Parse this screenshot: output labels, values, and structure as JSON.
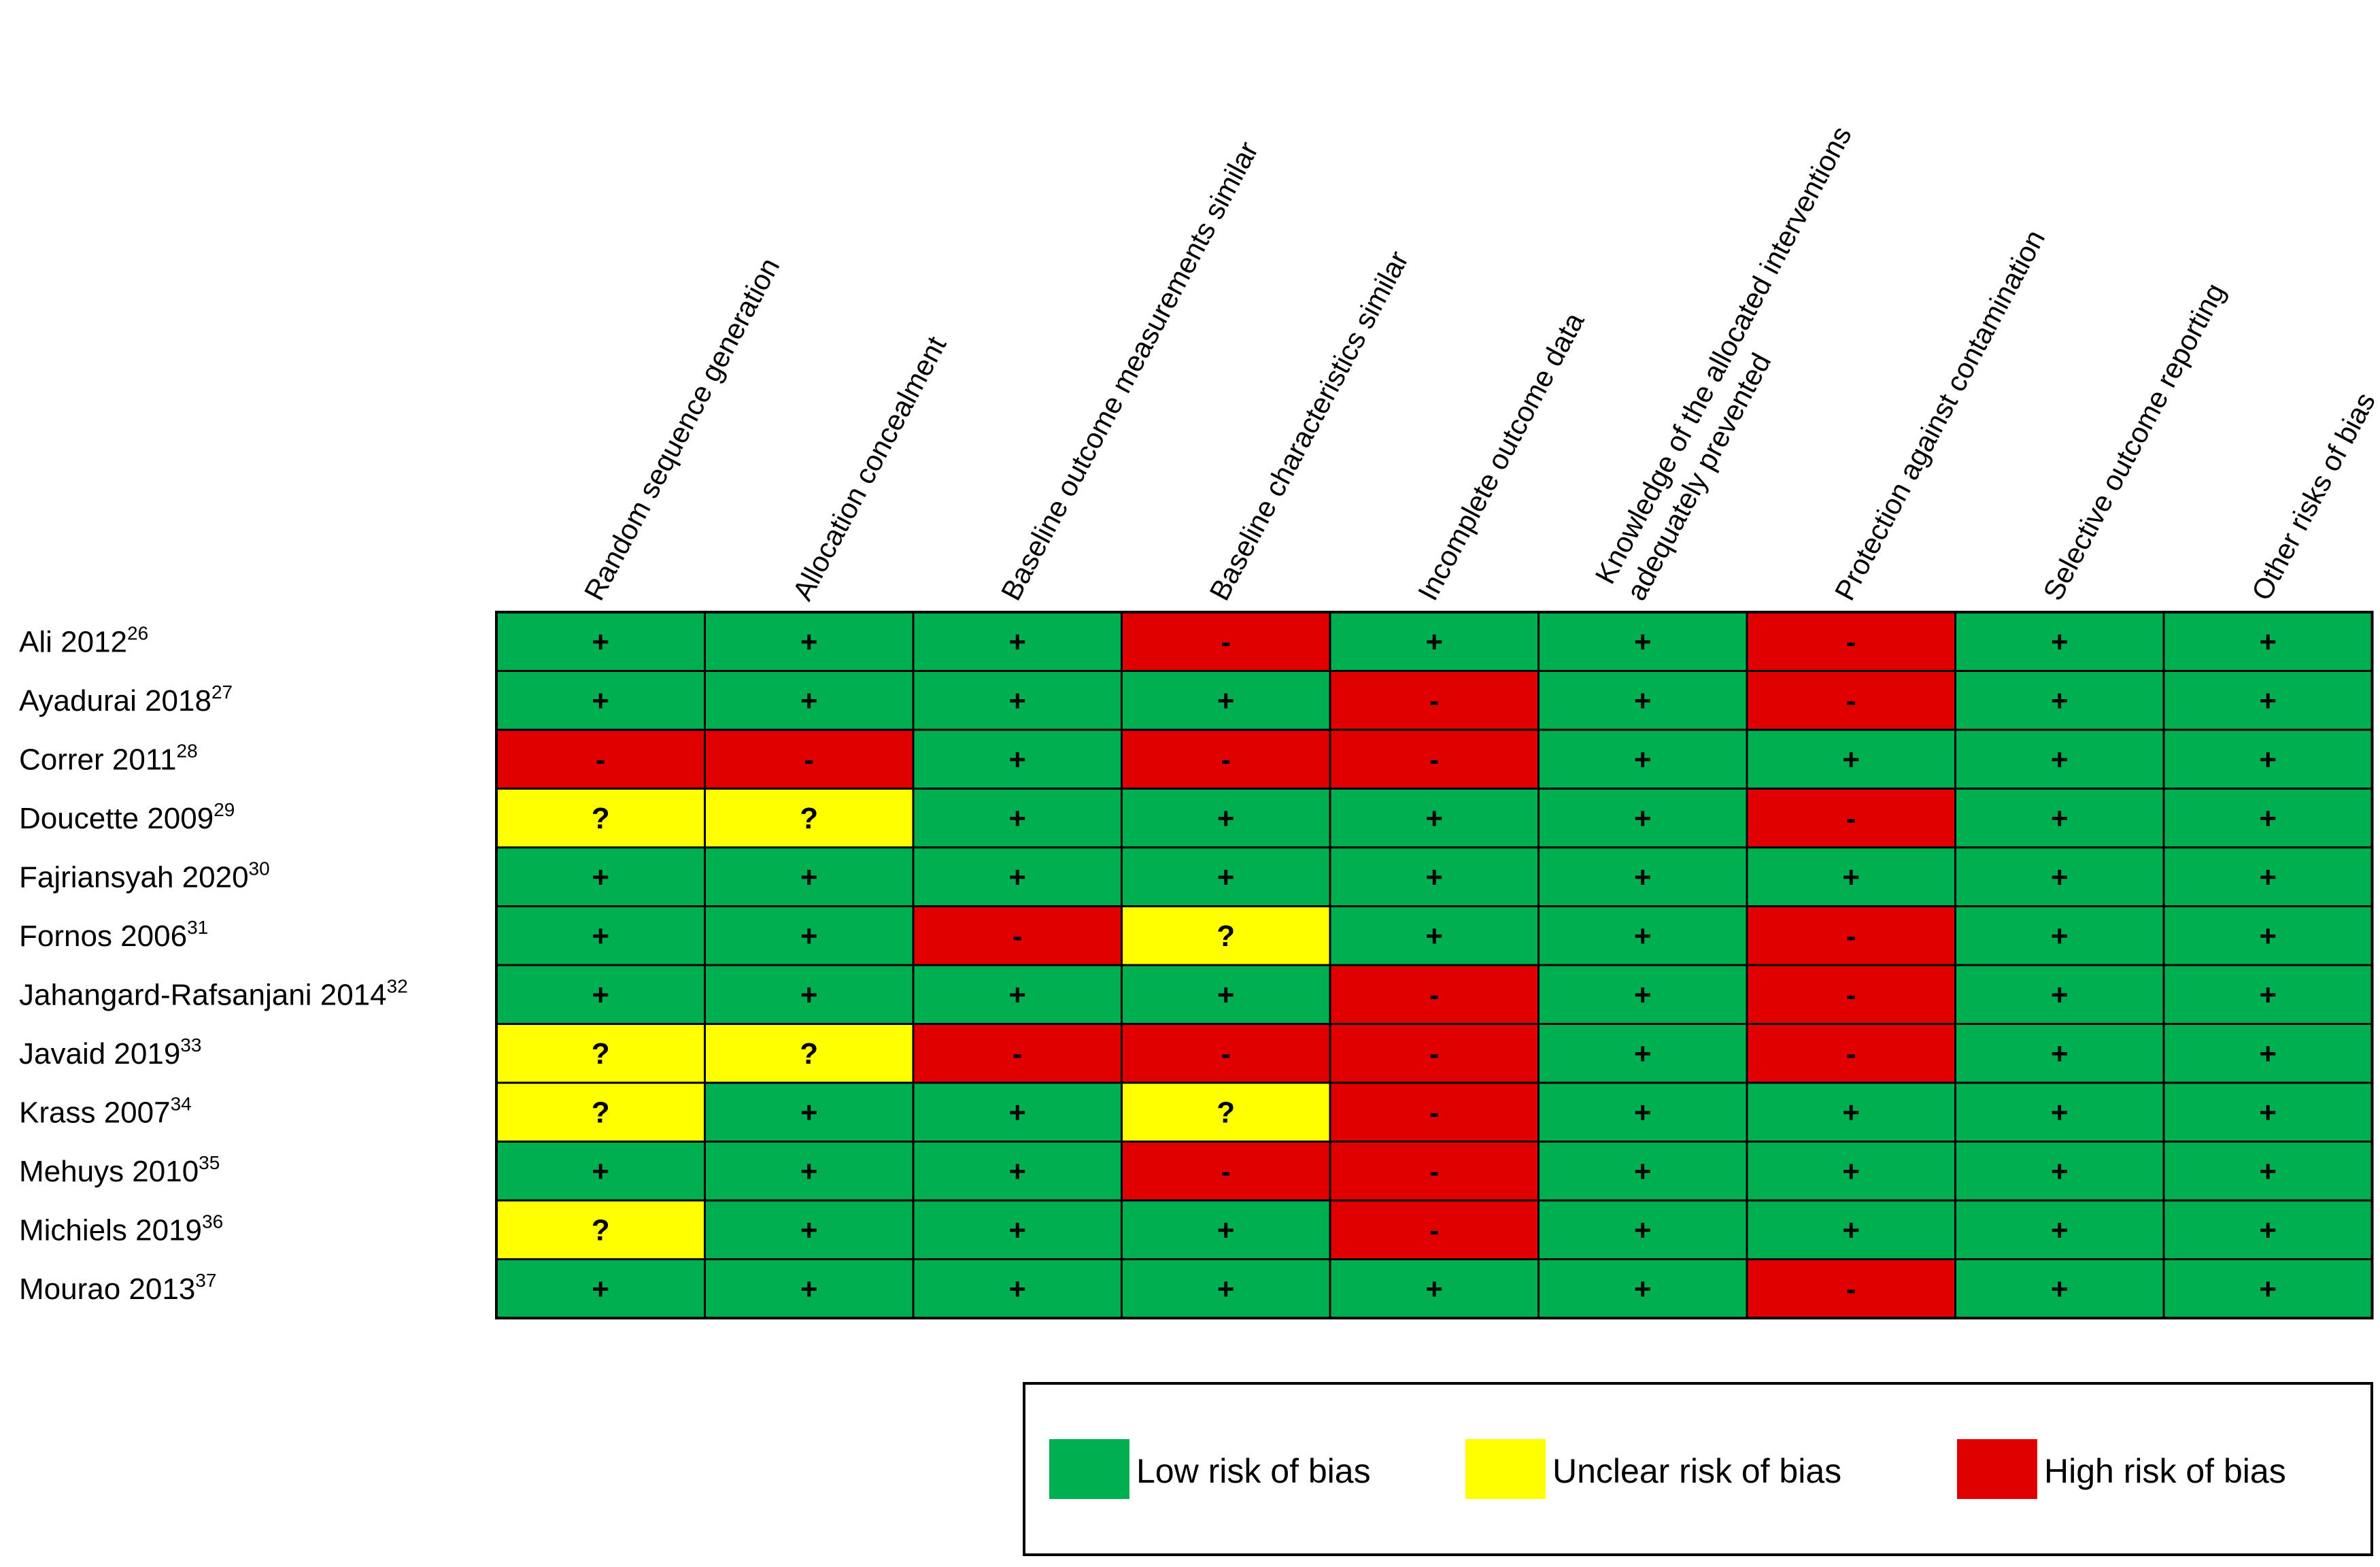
{
  "chart_data": {
    "type": "table",
    "title": "",
    "columns": [
      {
        "lines": [
          "Random sequence generation"
        ]
      },
      {
        "lines": [
          "Allocation concealment"
        ]
      },
      {
        "lines": [
          "Baseline outcome measurements similar"
        ]
      },
      {
        "lines": [
          "Baseline characteristics similar"
        ]
      },
      {
        "lines": [
          "Incomplete outcome data"
        ]
      },
      {
        "lines": [
          "Knowledge of the allocated interventions",
          "adequately prevented"
        ]
      },
      {
        "lines": [
          "Protection against contamination"
        ]
      },
      {
        "lines": [
          "Selective outcome reporting"
        ]
      },
      {
        "lines": [
          "Other risks of bias"
        ]
      }
    ],
    "rows": [
      {
        "study": "Ali 2012",
        "ref": "26",
        "ratings": [
          "low",
          "low",
          "low",
          "high",
          "low",
          "low",
          "high",
          "low",
          "low"
        ]
      },
      {
        "study": "Ayadurai 2018",
        "ref": "27",
        "ratings": [
          "low",
          "low",
          "low",
          "low",
          "high",
          "low",
          "high",
          "low",
          "low"
        ]
      },
      {
        "study": "Correr 2011",
        "ref": "28",
        "ratings": [
          "high",
          "high",
          "low",
          "high",
          "high",
          "low",
          "low",
          "low",
          "low"
        ]
      },
      {
        "study": "Doucette 2009",
        "ref": "29",
        "ratings": [
          "unclear",
          "unclear",
          "low",
          "low",
          "low",
          "low",
          "high",
          "low",
          "low"
        ]
      },
      {
        "study": "Fajriansyah 2020",
        "ref": "30",
        "ratings": [
          "low",
          "low",
          "low",
          "low",
          "low",
          "low",
          "low",
          "low",
          "low"
        ]
      },
      {
        "study": "Fornos 2006",
        "ref": "31",
        "ratings": [
          "low",
          "low",
          "high",
          "unclear",
          "low",
          "low",
          "high",
          "low",
          "low"
        ]
      },
      {
        "study": "Jahangard-Rafsanjani 2014",
        "ref": "32",
        "ratings": [
          "low",
          "low",
          "low",
          "low",
          "high",
          "low",
          "high",
          "low",
          "low"
        ]
      },
      {
        "study": "Javaid 2019",
        "ref": "33",
        "ratings": [
          "unclear",
          "unclear",
          "high",
          "high",
          "high",
          "low",
          "high",
          "low",
          "low"
        ]
      },
      {
        "study": "Krass 2007",
        "ref": "34",
        "ratings": [
          "unclear",
          "low",
          "low",
          "unclear",
          "high",
          "low",
          "low",
          "low",
          "low"
        ]
      },
      {
        "study": "Mehuys 2010",
        "ref": "35",
        "ratings": [
          "low",
          "low",
          "low",
          "high",
          "high",
          "low",
          "low",
          "low",
          "low"
        ]
      },
      {
        "study": "Michiels 2019",
        "ref": "36",
        "ratings": [
          "unclear",
          "low",
          "low",
          "low",
          "high",
          "low",
          "low",
          "low",
          "low"
        ]
      },
      {
        "study": "Mourao 2013",
        "ref": "37",
        "ratings": [
          "low",
          "low",
          "low",
          "low",
          "low",
          "low",
          "high",
          "low",
          "low"
        ]
      }
    ],
    "categories": {
      "low": {
        "symbol": "+",
        "color": "#00b050",
        "label": "Low risk of bias"
      },
      "unclear": {
        "symbol": "?",
        "color": "#ffff00",
        "label": "Unclear risk of bias"
      },
      "high": {
        "symbol": "-",
        "color": "#e00000",
        "label": "High risk of bias"
      }
    },
    "legend_order": [
      "low",
      "unclear",
      "high"
    ],
    "legend_position": "bottom-right"
  }
}
